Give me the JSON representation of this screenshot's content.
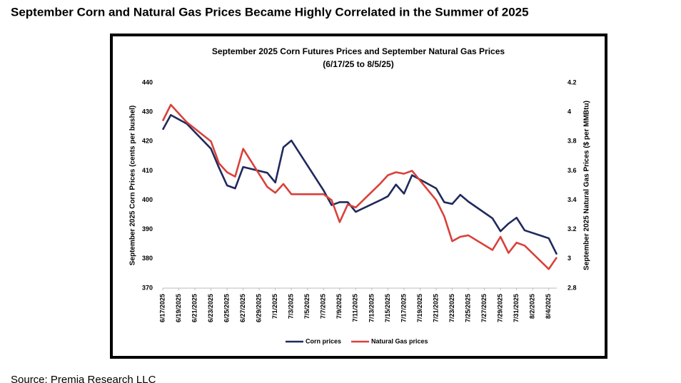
{
  "heading": "September Corn and Natural Gas Prices Became Highly Correlated in the Summer of 2025",
  "source": "Source:  Premia Research LLC",
  "chart_data": {
    "type": "line",
    "title": "September 2025 Corn Futures Prices and September Natural Gas Prices",
    "subtitle": "(6/17/25 to 8/5/25)",
    "y_label": "September 2025 Corn Prices (cents per bushel)",
    "y2_label": "September 2025 Natural Gas Prices ($ per MMBtu)",
    "x": [
      "6/17/2025",
      "6/18/2025",
      "6/20/2025",
      "6/23/2025",
      "6/24/2025",
      "6/25/2025",
      "6/26/2025",
      "6/27/2025",
      "6/30/2025",
      "7/1/2025",
      "7/2/2025",
      "7/3/2025",
      "7/7/2025",
      "7/8/2025",
      "7/9/2025",
      "7/10/2025",
      "7/11/2025",
      "7/14/2025",
      "7/15/2025",
      "7/16/2025",
      "7/17/2025",
      "7/18/2025",
      "7/21/2025",
      "7/22/2025",
      "7/23/2025",
      "7/24/2025",
      "7/25/2025",
      "7/28/2025",
      "7/29/2025",
      "7/30/2025",
      "7/31/2025",
      "8/1/2025",
      "8/4/2025",
      "8/5/2025"
    ],
    "series": [
      {
        "name": "Corn prices",
        "color": "#1f2a5c",
        "axis": "y",
        "values": [
          424,
          429,
          426,
          417.5,
          411,
          405,
          404,
          411.3,
          409.3,
          406,
          418,
          420.3,
          403.3,
          398.3,
          399.3,
          399.3,
          396,
          399.9,
          401.3,
          405.3,
          402.2,
          408.5,
          404,
          399.3,
          398.7,
          401.8,
          399.5,
          393.8,
          389.4,
          392,
          394,
          389.7,
          387,
          381.5
        ]
      },
      {
        "name": "Natural Gas prices",
        "color": "#d9413a",
        "axis": "y2",
        "values": [
          3.94,
          4.05,
          3.93,
          3.8,
          3.65,
          3.59,
          3.56,
          3.75,
          3.49,
          3.45,
          3.51,
          3.44,
          3.44,
          3.4,
          3.25,
          3.37,
          3.35,
          3.51,
          3.57,
          3.59,
          3.58,
          3.6,
          3.4,
          3.29,
          3.12,
          3.15,
          3.16,
          3.06,
          3.15,
          3.04,
          3.11,
          3.09,
          2.93,
          3.01
        ]
      }
    ],
    "xlim": [
      "6/17/2025",
      "8/5/2025"
    ],
    "xticks": [
      "6/17/2025",
      "6/19/2025",
      "6/21/2025",
      "6/23/2025",
      "6/25/2025",
      "6/27/2025",
      "6/29/2025",
      "7/1/2025",
      "7/3/2025",
      "7/5/2025",
      "7/7/2025",
      "7/9/2025",
      "7/11/2025",
      "7/13/2025",
      "7/15/2025",
      "7/17/2025",
      "7/19/2025",
      "7/21/2025",
      "7/23/2025",
      "7/25/2025",
      "7/27/2025",
      "7/29/2025",
      "7/31/2025",
      "8/2/2025",
      "8/4/2025"
    ],
    "ylim": [
      370,
      440
    ],
    "yticks": [
      370,
      380,
      390,
      400,
      410,
      420,
      430,
      440
    ],
    "y2lim": [
      2.8,
      4.2
    ],
    "y2ticks": [
      2.8,
      3,
      3.2,
      3.4,
      3.6,
      3.8,
      4,
      4.2
    ],
    "legend": "bottom",
    "grid": false
  }
}
